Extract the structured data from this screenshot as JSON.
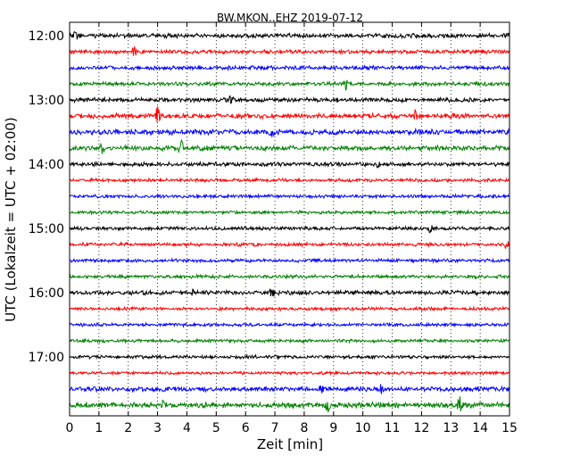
{
  "chart_data": {
    "type": "line",
    "title": "BW.MKON..EHZ 2019-07-12",
    "xlabel": "Zeit  [min]",
    "ylabel": "UTC (Lokalzeit = UTC + 02:00)",
    "xlim": [
      0,
      15
    ],
    "x_ticks": [
      "0",
      "1",
      "2",
      "3",
      "4",
      "5",
      "6",
      "7",
      "8",
      "9",
      "10",
      "11",
      "12",
      "13",
      "14",
      "15"
    ],
    "y_ticks": [
      "12:00",
      "13:00",
      "14:00",
      "15:00",
      "16:00",
      "17:00"
    ],
    "grid": "vertical-dotted",
    "trace_colors": [
      "#000000",
      "#ff0000",
      "#0000ff",
      "#008000"
    ],
    "traces": [
      {
        "start": "12:00",
        "color": "#000000",
        "amplitude": 2.0,
        "events": [
          {
            "minute": 0.2,
            "amp": 4
          },
          {
            "minute": 14.9,
            "amp": 3
          }
        ]
      },
      {
        "start": "12:15",
        "color": "#ff0000",
        "amplitude": 1.8,
        "events": [
          {
            "minute": 2.2,
            "amp": 6
          }
        ]
      },
      {
        "start": "12:30",
        "color": "#0000ff",
        "amplitude": 1.8,
        "events": []
      },
      {
        "start": "12:45",
        "color": "#008000",
        "amplitude": 1.8,
        "events": [
          {
            "minute": 9.4,
            "amp": 7
          }
        ]
      },
      {
        "start": "13:00",
        "color": "#000000",
        "amplitude": 2.0,
        "events": [
          {
            "minute": 5.5,
            "amp": 4
          }
        ]
      },
      {
        "start": "13:15",
        "color": "#ff0000",
        "amplitude": 2.2,
        "events": [
          {
            "minute": 3.0,
            "amp": 10
          },
          {
            "minute": 11.8,
            "amp": 6
          }
        ]
      },
      {
        "start": "13:30",
        "color": "#0000ff",
        "amplitude": 2.5,
        "events": [
          {
            "minute": 3.4,
            "amp": 4
          },
          {
            "minute": 6.9,
            "amp": 4
          }
        ]
      },
      {
        "start": "13:45",
        "color": "#008000",
        "amplitude": 2.2,
        "events": [
          {
            "minute": 1.1,
            "amp": 6
          },
          {
            "minute": 3.8,
            "amp": 9
          }
        ]
      },
      {
        "start": "14:00",
        "color": "#000000",
        "amplitude": 1.8,
        "events": [
          {
            "minute": 10.5,
            "amp": 3
          }
        ]
      },
      {
        "start": "14:15",
        "color": "#ff0000",
        "amplitude": 1.5,
        "events": []
      },
      {
        "start": "14:30",
        "color": "#0000ff",
        "amplitude": 1.5,
        "events": []
      },
      {
        "start": "14:45",
        "color": "#008000",
        "amplitude": 1.5,
        "events": []
      },
      {
        "start": "15:00",
        "color": "#000000",
        "amplitude": 1.6,
        "events": [
          {
            "minute": 12.3,
            "amp": 6
          }
        ]
      },
      {
        "start": "15:15",
        "color": "#ff0000",
        "amplitude": 1.6,
        "events": [
          {
            "minute": 14.9,
            "amp": 4
          }
        ]
      },
      {
        "start": "15:30",
        "color": "#0000ff",
        "amplitude": 1.5,
        "events": []
      },
      {
        "start": "15:45",
        "color": "#008000",
        "amplitude": 1.6,
        "events": []
      },
      {
        "start": "16:00",
        "color": "#000000",
        "amplitude": 2.0,
        "events": [
          {
            "minute": 4.2,
            "amp": 3
          },
          {
            "minute": 6.9,
            "amp": 5
          }
        ]
      },
      {
        "start": "16:15",
        "color": "#ff0000",
        "amplitude": 1.5,
        "events": []
      },
      {
        "start": "16:30",
        "color": "#0000ff",
        "amplitude": 1.5,
        "events": []
      },
      {
        "start": "16:45",
        "color": "#008000",
        "amplitude": 1.5,
        "events": []
      },
      {
        "start": "17:00",
        "color": "#000000",
        "amplitude": 1.5,
        "events": []
      },
      {
        "start": "17:15",
        "color": "#ff0000",
        "amplitude": 1.4,
        "events": []
      },
      {
        "start": "17:30",
        "color": "#0000ff",
        "amplitude": 2.2,
        "events": [
          {
            "minute": 8.6,
            "amp": 4
          },
          {
            "minute": 10.6,
            "amp": 4
          }
        ]
      },
      {
        "start": "17:45",
        "color": "#008000",
        "amplitude": 2.5,
        "events": [
          {
            "minute": 3.2,
            "amp": 5
          },
          {
            "minute": 8.8,
            "amp": 6
          },
          {
            "minute": 13.3,
            "amp": 10
          }
        ]
      }
    ]
  }
}
